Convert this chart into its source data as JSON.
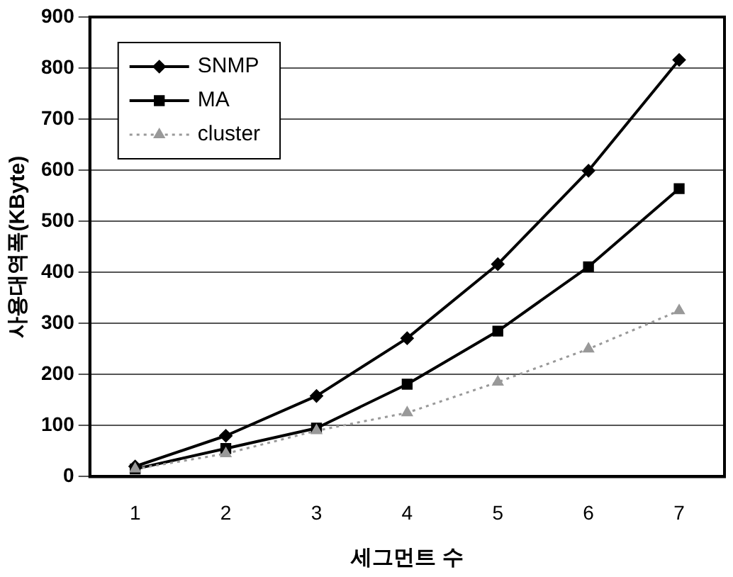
{
  "chart_data": {
    "type": "line",
    "xlabel": "세그먼트 수",
    "ylabel": "사용대역폭(KByte)",
    "categories": [
      "1",
      "2",
      "3",
      "4",
      "5",
      "6",
      "7"
    ],
    "series": [
      {
        "name": "SNMP",
        "color": "#000000",
        "marker": "diamond",
        "line_style": "solid",
        "values": [
          20,
          80,
          158,
          271,
          416,
          599,
          816
        ]
      },
      {
        "name": "MA",
        "color": "#000000",
        "marker": "square",
        "line_style": "solid",
        "values": [
          15,
          55,
          95,
          181,
          285,
          411,
          564
        ]
      },
      {
        "name": "cluster",
        "color": "#999999",
        "marker": "triangle",
        "line_style": "dotted",
        "values": [
          15,
          45,
          90,
          125,
          185,
          250,
          325
        ]
      }
    ],
    "ylim": [
      0,
      900
    ],
    "yticks": [
      0,
      100,
      200,
      300,
      400,
      500,
      600,
      700,
      800,
      900
    ],
    "grid": "y",
    "legend": "top left"
  }
}
